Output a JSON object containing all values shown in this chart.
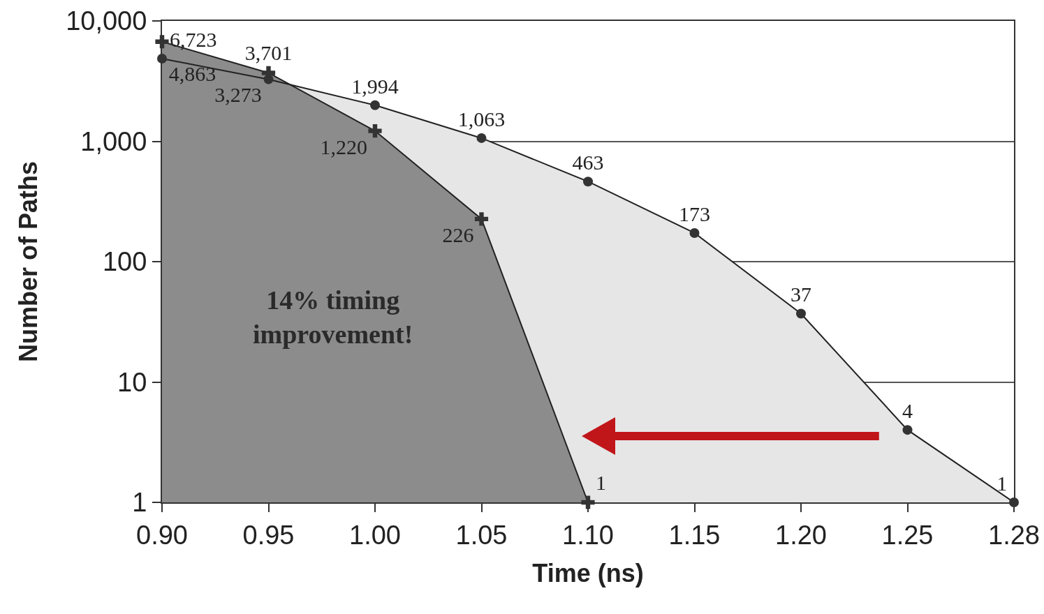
{
  "chart_data": {
    "type": "area",
    "xlabel": "Time (ns)",
    "ylabel": "Number of Paths",
    "categories": [
      "0.90",
      "0.95",
      "1.00",
      "1.05",
      "1.10",
      "1.15",
      "1.20",
      "1.25",
      "1.28"
    ],
    "log": true,
    "ylim": [
      1,
      10000
    ],
    "yticks": [
      1,
      10,
      100,
      {
        "value": 1000,
        "label": "1,000"
      },
      {
        "value": 10000,
        "label": "10,000"
      }
    ],
    "grid": "y",
    "series": [
      {
        "color": "#e6e6e6",
        "marker": "circle",
        "values": [
          4863,
          3273,
          1994,
          1063,
          463,
          173,
          37,
          4,
          1
        ],
        "value_labels": [
          "4,863",
          "3,273",
          "1,994",
          "1,063",
          "463",
          "173",
          "37",
          "4",
          "1"
        ]
      },
      {
        "color": "#8c8c8c",
        "marker": "cross",
        "values": [
          6723,
          3701,
          1220,
          226,
          1,
          null,
          null,
          null,
          null
        ],
        "value_labels": [
          "6,723",
          "3,701",
          "1,220",
          "226",
          "1",
          null,
          null,
          null,
          null
        ]
      }
    ],
    "annotations": [
      "14% timing\nimprovement!"
    ]
  }
}
